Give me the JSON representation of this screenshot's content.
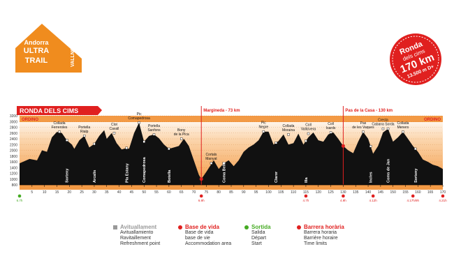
{
  "logo": {
    "line1": "Andorra",
    "line2": "ULTRA",
    "line3": "TRAIL",
    "side": "VALLNORD"
  },
  "badge": {
    "line1": "Ronda",
    "line2": "dels cims",
    "line3": "170 km",
    "line4": "13.500 m D+"
  },
  "chart_data": {
    "type": "area",
    "title": "RONDA DELS CIMS",
    "start_label": "ORDINO",
    "end_label": "ORDINO",
    "xlim": [
      0,
      170
    ],
    "ylim": [
      800,
      3200
    ],
    "x_ticks": [
      5,
      10,
      15,
      20,
      25,
      30,
      35,
      40,
      45,
      50,
      55,
      60,
      65,
      70,
      75,
      80,
      85,
      90,
      95,
      100,
      105,
      110,
      115,
      120,
      125,
      130,
      135,
      140,
      145,
      150,
      155,
      160,
      165,
      170
    ],
    "y_ticks": [
      800,
      1000,
      1200,
      1400,
      1600,
      1800,
      2000,
      2200,
      2400,
      2600,
      2800,
      3000,
      3200
    ],
    "profile": {
      "x": [
        0,
        4,
        7,
        9,
        11,
        13,
        15,
        17,
        19,
        21,
        22,
        24,
        26,
        28,
        30,
        32,
        34,
        35,
        37,
        39,
        41,
        43,
        44,
        46,
        48,
        50,
        52,
        54,
        56,
        58,
        60,
        62,
        64,
        66,
        68,
        70,
        72,
        73,
        75,
        78,
        80,
        82,
        84,
        86,
        88,
        90,
        92,
        94,
        96,
        98,
        100,
        102,
        104,
        106,
        108,
        110,
        112,
        114,
        116,
        118,
        120,
        122,
        124,
        126,
        128,
        130,
        132,
        134,
        136,
        138,
        140,
        142,
        144,
        146,
        148,
        150,
        152,
        154,
        156,
        158,
        160,
        162,
        164,
        166,
        168,
        170
      ],
      "y": [
        1550,
        1700,
        1650,
        2000,
        1950,
        2450,
        2640,
        2600,
        2350,
        2200,
        2050,
        2350,
        2500,
        2100,
        2220,
        2500,
        2700,
        2400,
        2600,
        2250,
        2030,
        2080,
        2050,
        2600,
        2960,
        2300,
        2500,
        2550,
        2420,
        2200,
        2050,
        2100,
        2150,
        2400,
        2150,
        1650,
        1150,
        1000,
        1250,
        1650,
        1350,
        1550,
        1650,
        1450,
        1650,
        1950,
        2100,
        2200,
        2350,
        2650,
        2650,
        2200,
        2320,
        2550,
        2200,
        2250,
        2580,
        2200,
        2450,
        2620,
        2350,
        2300,
        2550,
        2620,
        2400,
        2150,
        2000,
        1900,
        2300,
        2640,
        2400,
        1880,
        2150,
        2620,
        2750,
        2300,
        2450,
        2640,
        2400,
        2150,
        1950,
        1680,
        1600,
        1500,
        1450,
        1350
      ]
    },
    "peaks": [
      {
        "name": "Collada Ferreroles",
        "x": 16,
        "y": 2640
      },
      {
        "name": "Portella Rialp",
        "x": 26,
        "y": 2500
      },
      {
        "name": "Clot Cavall",
        "x": 38,
        "y": 2600
      },
      {
        "name": "Pic Comapedrosa",
        "x": 48,
        "y": 2960
      },
      {
        "name": "Portella Sanfons",
        "x": 54,
        "y": 2550
      },
      {
        "name": "Bony de la Pica",
        "x": 65,
        "y": 2400
      },
      {
        "name": "Cortals Manyat",
        "x": 77,
        "y": 1550
      },
      {
        "name": "Pic Negre",
        "x": 98,
        "y": 2650
      },
      {
        "name": "Collada Moraina",
        "x": 108,
        "y": 2550
      },
      {
        "name": "Coll Vallcivera",
        "x": 116,
        "y": 2580
      },
      {
        "name": "Coll Isards",
        "x": 125,
        "y": 2620
      },
      {
        "name": "Pas de les Vaques",
        "x": 138,
        "y": 2640
      },
      {
        "name": "Cresta Cabana Sorda",
        "x": 146,
        "y": 2750
      },
      {
        "name": "Collada Meners",
        "x": 154,
        "y": 2640
      }
    ],
    "refuges": [
      {
        "name": "Sorteny",
        "x": 19
      },
      {
        "name": "Arcalís",
        "x": 30
      },
      {
        "name": "Pla Estany",
        "x": 43
      },
      {
        "name": "Comapedrosa",
        "x": 50
      },
      {
        "name": "Botella",
        "x": 60
      },
      {
        "name": "Coma Bella",
        "x": 82
      },
      {
        "name": "Claror",
        "x": 103
      },
      {
        "name": "Illa",
        "x": 115
      },
      {
        "name": "Incles",
        "x": 141
      },
      {
        "name": "Coms de Jan",
        "x": 148
      },
      {
        "name": "Sorteny",
        "x": 159
      }
    ],
    "markers": [
      {
        "label": "Margineda - 73 km",
        "x": 73
      },
      {
        "label": "Pas de la Casa - 130 km",
        "x": 130
      }
    ],
    "points": [
      {
        "x": 0,
        "type": "start",
        "label": "6.7h"
      },
      {
        "x": 73,
        "type": "base",
        "label": "6.9h"
      },
      {
        "x": 115,
        "type": "barrier",
        "label": "4.7h"
      },
      {
        "x": 130,
        "type": "barrier",
        "label": "4.9h"
      },
      {
        "x": 142,
        "type": "barrier",
        "label": "4.12h"
      },
      {
        "x": 158,
        "type": "barrier",
        "label": "4.17h/9h"
      },
      {
        "x": 170,
        "type": "barrier",
        "label": "4.21h"
      }
    ]
  },
  "legend": [
    {
      "title": "Avituallament",
      "lines": [
        "Avituallamiento",
        "Ravitaillement",
        "Refreshment point"
      ],
      "color": "#999999"
    },
    {
      "title": "Base de vida",
      "lines": [
        "Base de vida",
        "base de vie",
        "Accommodation area"
      ],
      "color": "#e0201f"
    },
    {
      "title": "Sortida",
      "lines": [
        "Salida",
        "Départ",
        "Start"
      ],
      "color": "#44aa22"
    },
    {
      "title": "Barrera horària",
      "lines": [
        "Barrera horaria",
        "Barrière horaire",
        "Time limits"
      ],
      "color": "#e0201f"
    }
  ]
}
